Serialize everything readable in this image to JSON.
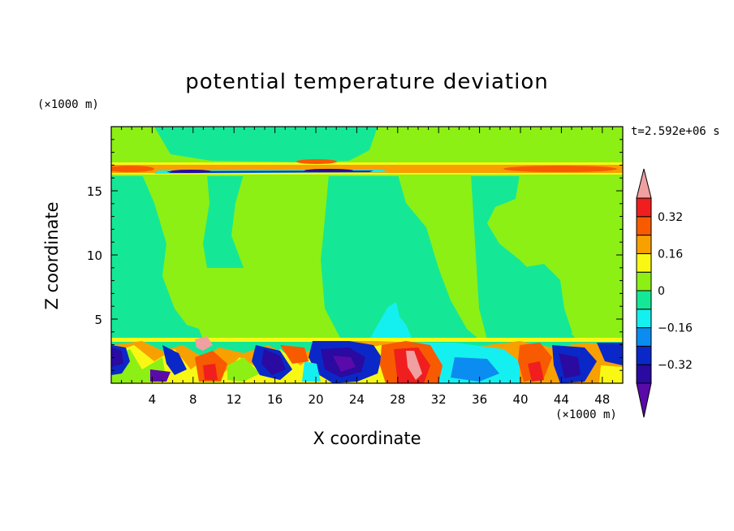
{
  "chart_data": {
    "type": "heatmap",
    "title": "potential temperature deviation",
    "xlabel": "X coordinate",
    "ylabel": "Z coordinate",
    "x_unit": "(×1000 m)",
    "y_unit": "(×1000 m)",
    "time_label": "t=2.592e+06 s",
    "xlim": [
      0,
      50
    ],
    "ylim": [
      0,
      20
    ],
    "x_ticks": [
      4,
      8,
      12,
      16,
      20,
      24,
      28,
      32,
      36,
      40,
      44,
      48
    ],
    "y_ticks": [
      5,
      10,
      15
    ],
    "colorbar": {
      "levels": [
        -0.4,
        -0.32,
        -0.24,
        -0.16,
        -0.08,
        0,
        0.08,
        0.16,
        0.24,
        0.32,
        0.4
      ],
      "labels": [
        "0.32",
        "0.16",
        "0",
        "−0.16",
        "−0.32"
      ],
      "label_values": [
        0.32,
        0.16,
        0,
        -0.16,
        -0.32
      ],
      "colors": [
        "#5a0aa8",
        "#2a0aa0",
        "#0a28c8",
        "#0a8cf0",
        "#14f0f0",
        "#14e896",
        "#8cf014",
        "#f8f814",
        "#f8a000",
        "#f85a00",
        "#f01e1e",
        "#f0a0a0"
      ]
    }
  }
}
